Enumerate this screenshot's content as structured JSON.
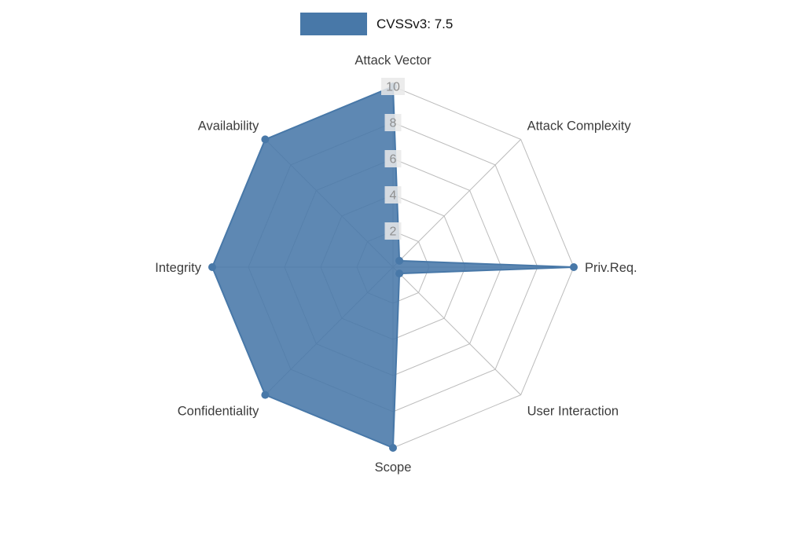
{
  "legend": {
    "label": "CVSSv3: 7.5"
  },
  "chart_data": {
    "type": "radar",
    "title": "CVSSv3: 7.5",
    "categories": [
      "Attack Vector",
      "Attack Complexity",
      "Priv.Req.",
      "User Interaction",
      "Scope",
      "Confidentiality",
      "Integrity",
      "Availability"
    ],
    "series": [
      {
        "name": "CVSSv3: 7.5",
        "values": [
          10,
          0.5,
          10,
          0.5,
          10,
          10,
          10,
          10
        ]
      }
    ],
    "ticks": [
      2,
      4,
      6,
      8,
      10
    ],
    "axis_range": [
      0,
      10
    ],
    "grid": true,
    "legend_position": "top-center",
    "colors": {
      "fill": "#4878a8",
      "grid": "#bcbcbc",
      "tick_text": "#8f8f8f",
      "tick_bg": "#e9e9e9",
      "label_text": "#3c3c3c",
      "legend_text": "#111111"
    }
  }
}
